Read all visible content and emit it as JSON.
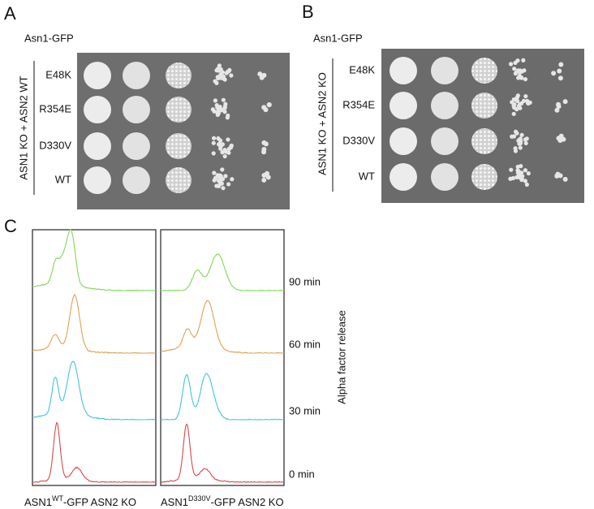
{
  "panels": [
    {
      "label": "A",
      "header": "Asn1-GFP",
      "group_label": "ASN1 KO + ASN2 WT",
      "rows": [
        "E48K",
        "R354E",
        "D330V",
        "WT"
      ]
    },
    {
      "label": "B",
      "header": "Asn1-GFP",
      "group_label": "ASN1 KO + ASN2 KO",
      "rows": [
        "E48K",
        "R354E",
        "D330V",
        "WT"
      ]
    }
  ],
  "panel_c": {
    "label": "C",
    "timepoints": [
      "90 min",
      "60 min",
      "30 min",
      "0 min"
    ],
    "axis_label": "Alpha factor release",
    "columns": [
      {
        "prefix": "ASN1",
        "superscript": "WT",
        "suffix": "-GFP ASN2 KO"
      },
      {
        "prefix": "ASN1",
        "superscript": "D330V",
        "suffix": "-GFP ASN2 KO"
      }
    ]
  }
}
